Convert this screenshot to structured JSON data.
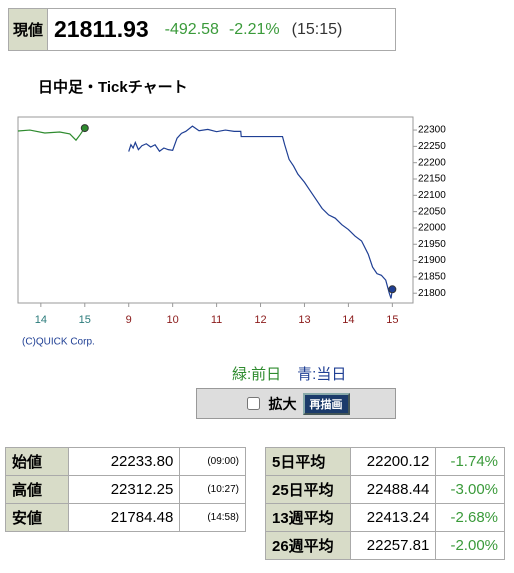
{
  "quote": {
    "label": "現値",
    "price": "21811.93",
    "change": "-492.58",
    "change_pct": "-2.21%",
    "time": "(15:15)"
  },
  "chart_data": {
    "type": "line",
    "title": "日中足・Tickチャート",
    "xlim": [
      -0.52,
      8.47
    ],
    "xticks": [
      {
        "value": 0,
        "label": "14"
      },
      {
        "value": 1,
        "label": "15"
      },
      {
        "value": 2,
        "label": "9"
      },
      {
        "value": 3,
        "label": "10"
      },
      {
        "value": 4,
        "label": "11"
      },
      {
        "value": 5,
        "label": "12"
      },
      {
        "value": 6,
        "label": "13"
      },
      {
        "value": 7,
        "label": "14"
      },
      {
        "value": 8,
        "label": "15"
      }
    ],
    "ylim": [
      21770,
      22340
    ],
    "yticks": [
      21800,
      21850,
      21900,
      21950,
      22000,
      22050,
      22100,
      22150,
      22200,
      22250,
      22300
    ],
    "series": [
      {
        "name": "緑:前日",
        "color": "#2e8b2e",
        "x": [
          -0.52,
          -0.25,
          0.09,
          0.43,
          0.66,
          0.8,
          0.89,
          0.95,
          1.0
        ],
        "values": [
          22297,
          22300,
          22291,
          22294,
          22288,
          22269,
          22285,
          22297,
          22306
        ]
      },
      {
        "name": "青:当日",
        "color": "#1f3f94",
        "x": [
          2.0,
          2.05,
          2.1,
          2.15,
          2.22,
          2.3,
          2.4,
          2.5,
          2.6,
          2.7,
          2.8,
          2.9,
          3.0,
          3.1,
          3.2,
          3.3,
          3.45,
          3.6,
          3.8,
          4.0,
          4.2,
          4.4,
          4.55,
          4.56,
          5.0,
          5.5,
          5.55,
          5.65,
          5.75,
          5.85,
          6.0,
          6.1,
          6.25,
          6.4,
          6.55,
          6.7,
          6.85,
          7.0,
          7.15,
          7.3,
          7.45,
          7.55,
          7.65,
          7.75,
          7.85,
          7.93,
          7.97,
          8.0
        ],
        "values": [
          22234,
          22255,
          22245,
          22262,
          22240,
          22252,
          22258,
          22248,
          22255,
          22235,
          22245,
          22240,
          22238,
          22275,
          22290,
          22296,
          22312,
          22298,
          22302,
          22295,
          22300,
          22296,
          22296,
          22280,
          22280,
          22280,
          22255,
          22210,
          22190,
          22165,
          22140,
          22120,
          22090,
          22060,
          22040,
          22030,
          22010,
          21995,
          21975,
          21960,
          21920,
          21880,
          21860,
          21855,
          21840,
          21800,
          21784,
          21812
        ]
      }
    ]
  },
  "copyright": "(C)QUICK Corp.",
  "controls": {
    "checkbox": "拡大",
    "button": "再描画"
  },
  "stats_left": {
    "rows": [
      [
        "始値",
        "22233.80",
        "(09:00)"
      ],
      [
        "高値",
        "22312.25",
        "(10:27)"
      ],
      [
        "安値",
        "21784.48",
        "(14:58)"
      ]
    ]
  },
  "stats_right": {
    "rows": [
      [
        "5日平均",
        "22200.12",
        "-1.74%"
      ],
      [
        "25日平均",
        "22488.44",
        "-3.00%"
      ],
      [
        "13週平均",
        "22413.24",
        "-2.68%"
      ],
      [
        "26週平均",
        "22257.81",
        "-2.00%"
      ]
    ]
  }
}
